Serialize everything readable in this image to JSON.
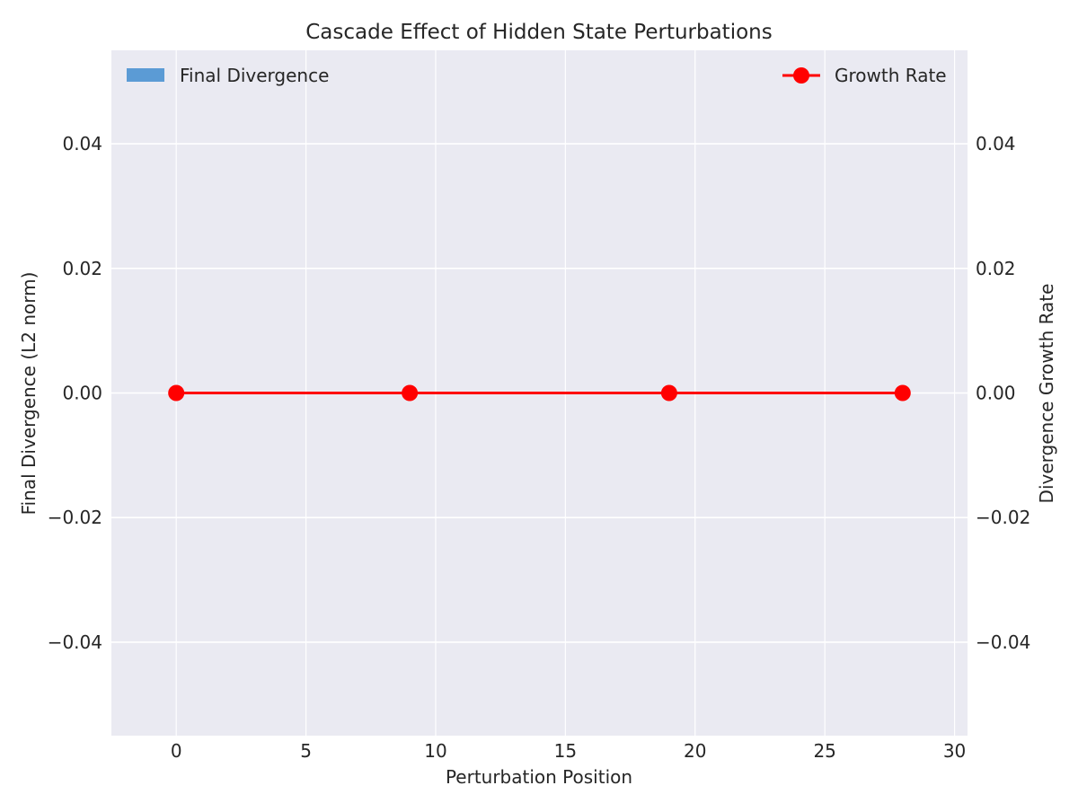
{
  "chart_data": {
    "type": "bar+line",
    "title": "Cascade Effect of Hidden State Perturbations",
    "xlabel": "Perturbation Position",
    "ylabel_left": "Final Divergence (L2 norm)",
    "ylabel_right": "Divergence Growth Rate",
    "xlim": [
      -2.5,
      30.5
    ],
    "ylim_left": [
      -0.055,
      0.055
    ],
    "ylim_right": [
      -0.055,
      0.055
    ],
    "x_ticks": [
      0,
      5,
      10,
      15,
      20,
      25,
      30
    ],
    "y_ticks": [
      -0.04,
      -0.02,
      0.0,
      0.02,
      0.04
    ],
    "y_tick_labels": [
      "−0.04",
      "−0.02",
      "0.00",
      "0.02",
      "0.04"
    ],
    "grid": true,
    "series": [
      {
        "name": "Final Divergence",
        "kind": "bar",
        "axis": "left",
        "color": "#5b9bd5",
        "x": [
          0,
          9,
          19,
          28
        ],
        "values": [
          0,
          0,
          0,
          0
        ]
      },
      {
        "name": "Growth Rate",
        "kind": "line",
        "axis": "right",
        "color": "#ff0000",
        "marker": "circle",
        "x": [
          0,
          9,
          19,
          28
        ],
        "values": [
          0,
          0,
          0,
          0
        ]
      }
    ],
    "legend": [
      {
        "label": "Final Divergence",
        "placement": "top-left"
      },
      {
        "label": "Growth Rate",
        "placement": "top-right"
      }
    ],
    "colors": {
      "background": "#eaeaf2",
      "grid": "#ffffff",
      "bar": "#5b9bd5",
      "line": "#ff0000"
    }
  }
}
